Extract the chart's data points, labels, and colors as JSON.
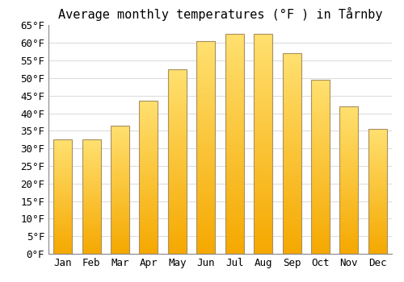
{
  "title": "Average monthly temperatures (°F ) in Tårnby",
  "months": [
    "Jan",
    "Feb",
    "Mar",
    "Apr",
    "May",
    "Jun",
    "Jul",
    "Aug",
    "Sep",
    "Oct",
    "Nov",
    "Dec"
  ],
  "values": [
    32.5,
    32.5,
    36.5,
    43.5,
    52.5,
    60.5,
    62.5,
    62.5,
    57,
    49.5,
    42,
    35.5
  ],
  "bar_color_bottom": "#F5A800",
  "bar_color_top": "#FFD966",
  "bar_edge_color": "#A89060",
  "ylim": [
    0,
    65
  ],
  "ytick_step": 5,
  "background_color": "#ffffff",
  "grid_color": "#dddddd",
  "title_fontsize": 11,
  "tick_fontsize": 9,
  "bar_width": 0.65
}
